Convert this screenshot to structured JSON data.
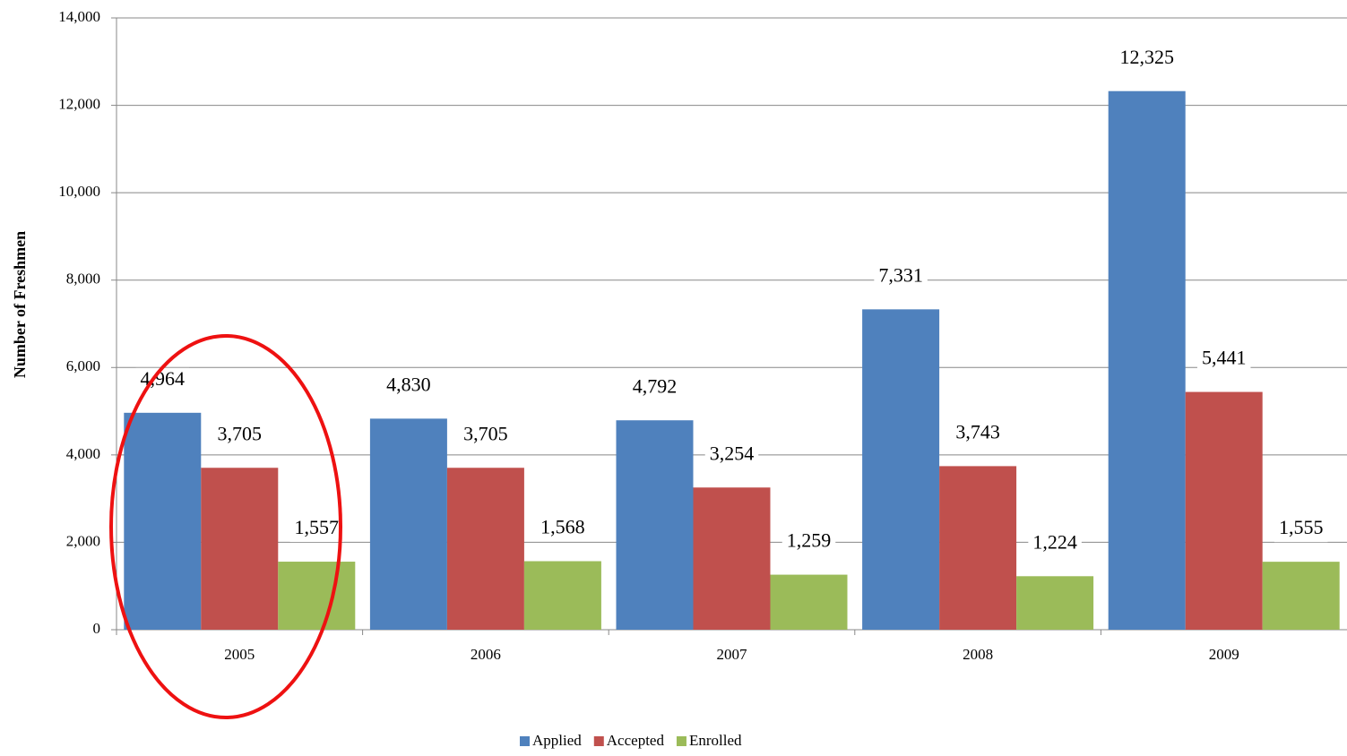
{
  "chart_data": {
    "type": "bar",
    "y_axis_label": "Number of Freshmen",
    "categories": [
      "2005",
      "2006",
      "2007",
      "2008",
      "2009"
    ],
    "series": [
      {
        "name": "Applied",
        "color": "#4f81bd",
        "values": [
          4964,
          4830,
          4792,
          7331,
          12325
        ],
        "value_labels": [
          "4,964",
          "4,830",
          "4,792",
          "7,331",
          "12,325"
        ]
      },
      {
        "name": "Accepted",
        "color": "#c0504d",
        "values": [
          3705,
          3705,
          3254,
          3743,
          5441
        ],
        "value_labels": [
          "3,705",
          "3,705",
          "3,254",
          "3,743",
          "5,441"
        ]
      },
      {
        "name": "Enrolled",
        "color": "#9bbb59",
        "values": [
          1557,
          1568,
          1259,
          1224,
          1555
        ],
        "value_labels": [
          "1,557",
          "1,568",
          "1,259",
          "1,224",
          "1,555"
        ]
      }
    ],
    "ylim": [
      0,
      14000
    ],
    "yticks": [
      0,
      {
        "value": 2000,
        "label": "2,000"
      },
      {
        "value": 4000,
        "label": "4,000"
      },
      {
        "value": 6000,
        "label": "6,000"
      },
      {
        "value": 8000,
        "label": "8,000"
      },
      {
        "value": 10000,
        "label": "10,000"
      },
      {
        "value": 12000,
        "label": "12,000"
      },
      {
        "value": 14000,
        "label": "14,000"
      }
    ],
    "grid": true,
    "legend": "bottom"
  }
}
